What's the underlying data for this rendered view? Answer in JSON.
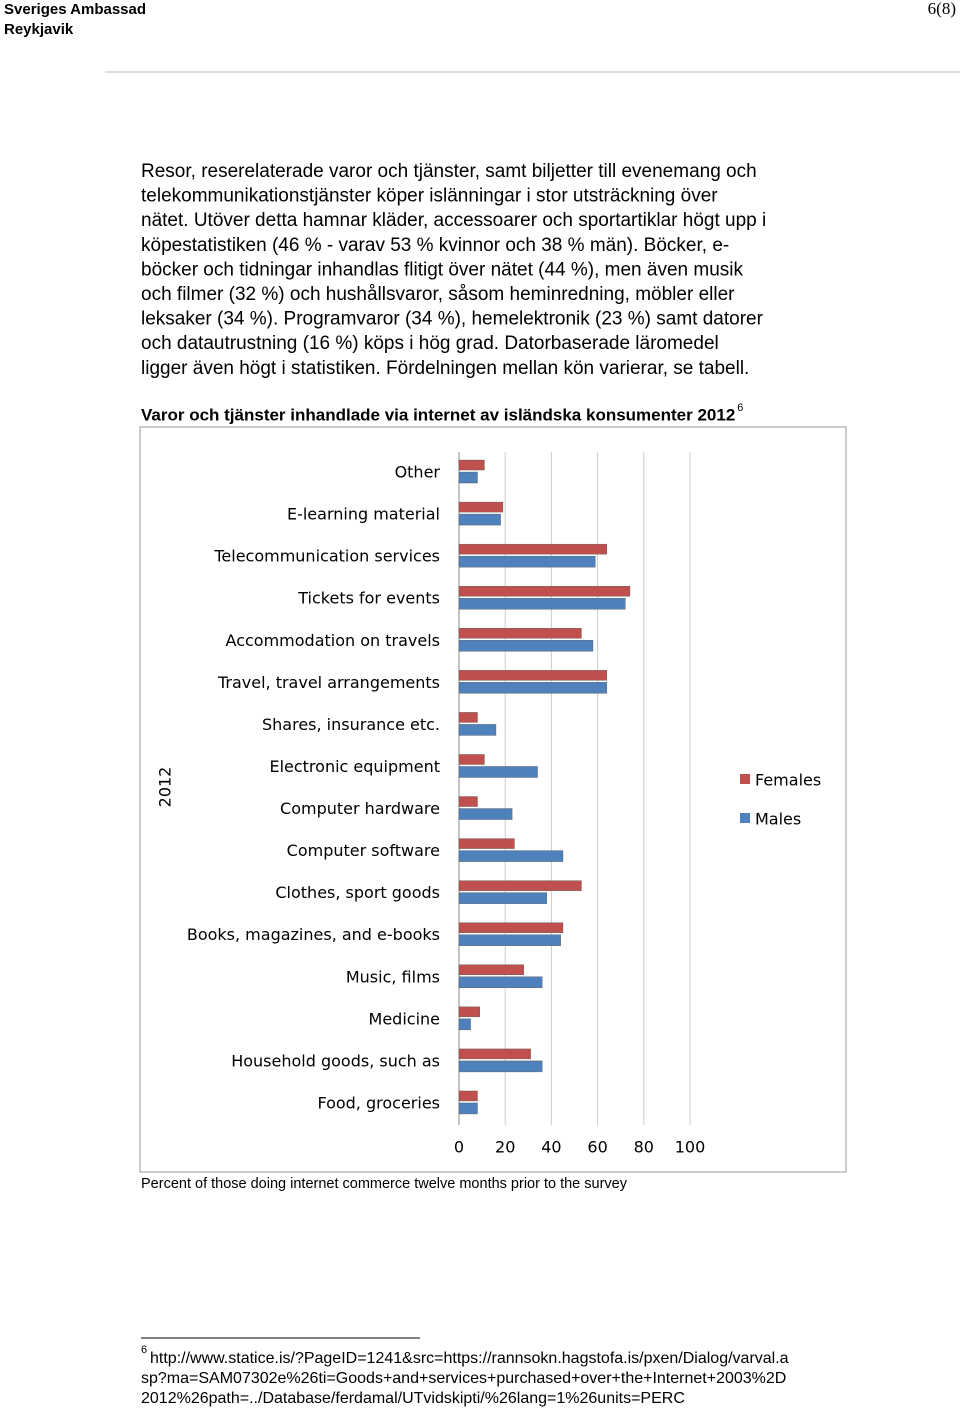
{
  "header": {
    "org": "Sveriges Ambassad",
    "city": "Reykjavik",
    "page": "6(8)"
  },
  "paragraph": {
    "lines": [
      "Resor, reserelaterade varor och tjänster, samt biljetter till evenemang och",
      "telekommunikationstjänster köper islänningar i stor utsträckning över",
      "nätet. Utöver detta hamnar kläder, accessoarer och sportartiklar högt upp i",
      "köpestatistiken (46 % - varav 53 % kvinnor och 38 % män). Böcker, e-",
      "böcker och tidningar inhandlas flitigt över nätet (44 %), men även musik",
      "och filmer (32 %) och hushållsvaror, såsom heminredning, möbler eller",
      "leksaker (34 %).  Programvaror (34 %), hemelektronik (23 %) samt datorer",
      "och datautrustning (16 %) köps i hög grad. Datorbaserade läromedel",
      "ligger även högt i statistiken. Fördelningen mellan kön varierar, se tabell."
    ]
  },
  "chart_data": {
    "type": "hbar",
    "title": "Varor och tjänster inhandlade via internet av isländska konsumenter 2012",
    "title_note": "6",
    "ylabel": "2012",
    "xlabel": "Percent of those doing internet commerce twelve months prior to the survey",
    "categories": [
      "Other",
      "E-learning material",
      "Telecommunication services",
      "Tickets for events",
      "Accommodation on travels",
      "Travel, travel arrangements",
      "Shares, insurance etc.",
      "Electronic equipment",
      "Computer hardware",
      "Computer software",
      "Clothes, sport goods",
      "Books, magazines, and e-books",
      "Music, films",
      "Medicine",
      "Household goods, such as",
      "Food, groceries"
    ],
    "series": [
      {
        "name": "Females",
        "color": "#c0504d",
        "values": [
          11,
          19,
          64,
          74,
          53,
          64,
          8,
          11,
          8,
          24,
          53,
          45,
          28,
          9,
          31,
          8
        ]
      },
      {
        "name": "Males",
        "color": "#4f81bd",
        "values": [
          8,
          18,
          59,
          72,
          58,
          64,
          16,
          34,
          23,
          45,
          38,
          44,
          36,
          5,
          36,
          8
        ]
      }
    ],
    "xlim": [
      0,
      100
    ],
    "xticks": [
      0,
      20,
      40,
      60,
      80,
      100
    ],
    "grid": true,
    "legend": "right"
  },
  "footnote": {
    "number": "6",
    "lines": [
      "http://www.statice.is/?PageID=1241&src=https://rannsokn.hagstofa.is/pxen/Dialog/varval.a",
      "sp?ma=SAM07302e%26ti=Goods+and+services+purchased+over+the+Internet+2003%2D",
      "2012%26path=../Database/ferdamal/UTvidskipti/%26lang=1%26units=PERC"
    ]
  }
}
